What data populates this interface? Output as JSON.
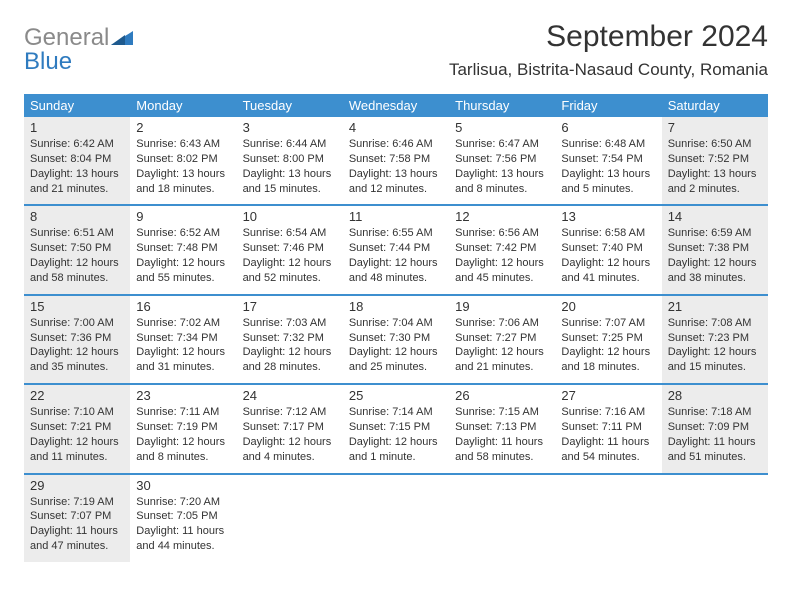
{
  "brand": {
    "word1": "General",
    "word2": "Blue",
    "gray_color": "#8a8a8a",
    "blue_color": "#2f7bbf",
    "icon_color": "#2f7bbf"
  },
  "title": "September 2024",
  "location": "Tarlisua, Bistrita-Nasaud County, Romania",
  "colors": {
    "header_bg": "#3d8fcf",
    "header_text": "#ffffff",
    "row_border": "#3d8fcf",
    "shaded_bg": "#ececec",
    "text": "#333333",
    "page_bg": "#ffffff"
  },
  "typography": {
    "month_title_size": 30,
    "location_size": 17,
    "dayhead_size": 13,
    "daynum_size": 13,
    "body_size": 11
  },
  "day_headers": [
    "Sunday",
    "Monday",
    "Tuesday",
    "Wednesday",
    "Thursday",
    "Friday",
    "Saturday"
  ],
  "weeks": [
    [
      {
        "num": "1",
        "shaded": true,
        "sunrise": "Sunrise: 6:42 AM",
        "sunset": "Sunset: 8:04 PM",
        "day1": "Daylight: 13 hours",
        "day2": "and 21 minutes."
      },
      {
        "num": "2",
        "shaded": false,
        "sunrise": "Sunrise: 6:43 AM",
        "sunset": "Sunset: 8:02 PM",
        "day1": "Daylight: 13 hours",
        "day2": "and 18 minutes."
      },
      {
        "num": "3",
        "shaded": false,
        "sunrise": "Sunrise: 6:44 AM",
        "sunset": "Sunset: 8:00 PM",
        "day1": "Daylight: 13 hours",
        "day2": "and 15 minutes."
      },
      {
        "num": "4",
        "shaded": false,
        "sunrise": "Sunrise: 6:46 AM",
        "sunset": "Sunset: 7:58 PM",
        "day1": "Daylight: 13 hours",
        "day2": "and 12 minutes."
      },
      {
        "num": "5",
        "shaded": false,
        "sunrise": "Sunrise: 6:47 AM",
        "sunset": "Sunset: 7:56 PM",
        "day1": "Daylight: 13 hours",
        "day2": "and 8 minutes."
      },
      {
        "num": "6",
        "shaded": false,
        "sunrise": "Sunrise: 6:48 AM",
        "sunset": "Sunset: 7:54 PM",
        "day1": "Daylight: 13 hours",
        "day2": "and 5 minutes."
      },
      {
        "num": "7",
        "shaded": true,
        "sunrise": "Sunrise: 6:50 AM",
        "sunset": "Sunset: 7:52 PM",
        "day1": "Daylight: 13 hours",
        "day2": "and 2 minutes."
      }
    ],
    [
      {
        "num": "8",
        "shaded": true,
        "sunrise": "Sunrise: 6:51 AM",
        "sunset": "Sunset: 7:50 PM",
        "day1": "Daylight: 12 hours",
        "day2": "and 58 minutes."
      },
      {
        "num": "9",
        "shaded": false,
        "sunrise": "Sunrise: 6:52 AM",
        "sunset": "Sunset: 7:48 PM",
        "day1": "Daylight: 12 hours",
        "day2": "and 55 minutes."
      },
      {
        "num": "10",
        "shaded": false,
        "sunrise": "Sunrise: 6:54 AM",
        "sunset": "Sunset: 7:46 PM",
        "day1": "Daylight: 12 hours",
        "day2": "and 52 minutes."
      },
      {
        "num": "11",
        "shaded": false,
        "sunrise": "Sunrise: 6:55 AM",
        "sunset": "Sunset: 7:44 PM",
        "day1": "Daylight: 12 hours",
        "day2": "and 48 minutes."
      },
      {
        "num": "12",
        "shaded": false,
        "sunrise": "Sunrise: 6:56 AM",
        "sunset": "Sunset: 7:42 PM",
        "day1": "Daylight: 12 hours",
        "day2": "and 45 minutes."
      },
      {
        "num": "13",
        "shaded": false,
        "sunrise": "Sunrise: 6:58 AM",
        "sunset": "Sunset: 7:40 PM",
        "day1": "Daylight: 12 hours",
        "day2": "and 41 minutes."
      },
      {
        "num": "14",
        "shaded": true,
        "sunrise": "Sunrise: 6:59 AM",
        "sunset": "Sunset: 7:38 PM",
        "day1": "Daylight: 12 hours",
        "day2": "and 38 minutes."
      }
    ],
    [
      {
        "num": "15",
        "shaded": true,
        "sunrise": "Sunrise: 7:00 AM",
        "sunset": "Sunset: 7:36 PM",
        "day1": "Daylight: 12 hours",
        "day2": "and 35 minutes."
      },
      {
        "num": "16",
        "shaded": false,
        "sunrise": "Sunrise: 7:02 AM",
        "sunset": "Sunset: 7:34 PM",
        "day1": "Daylight: 12 hours",
        "day2": "and 31 minutes."
      },
      {
        "num": "17",
        "shaded": false,
        "sunrise": "Sunrise: 7:03 AM",
        "sunset": "Sunset: 7:32 PM",
        "day1": "Daylight: 12 hours",
        "day2": "and 28 minutes."
      },
      {
        "num": "18",
        "shaded": false,
        "sunrise": "Sunrise: 7:04 AM",
        "sunset": "Sunset: 7:30 PM",
        "day1": "Daylight: 12 hours",
        "day2": "and 25 minutes."
      },
      {
        "num": "19",
        "shaded": false,
        "sunrise": "Sunrise: 7:06 AM",
        "sunset": "Sunset: 7:27 PM",
        "day1": "Daylight: 12 hours",
        "day2": "and 21 minutes."
      },
      {
        "num": "20",
        "shaded": false,
        "sunrise": "Sunrise: 7:07 AM",
        "sunset": "Sunset: 7:25 PM",
        "day1": "Daylight: 12 hours",
        "day2": "and 18 minutes."
      },
      {
        "num": "21",
        "shaded": true,
        "sunrise": "Sunrise: 7:08 AM",
        "sunset": "Sunset: 7:23 PM",
        "day1": "Daylight: 12 hours",
        "day2": "and 15 minutes."
      }
    ],
    [
      {
        "num": "22",
        "shaded": true,
        "sunrise": "Sunrise: 7:10 AM",
        "sunset": "Sunset: 7:21 PM",
        "day1": "Daylight: 12 hours",
        "day2": "and 11 minutes."
      },
      {
        "num": "23",
        "shaded": false,
        "sunrise": "Sunrise: 7:11 AM",
        "sunset": "Sunset: 7:19 PM",
        "day1": "Daylight: 12 hours",
        "day2": "and 8 minutes."
      },
      {
        "num": "24",
        "shaded": false,
        "sunrise": "Sunrise: 7:12 AM",
        "sunset": "Sunset: 7:17 PM",
        "day1": "Daylight: 12 hours",
        "day2": "and 4 minutes."
      },
      {
        "num": "25",
        "shaded": false,
        "sunrise": "Sunrise: 7:14 AM",
        "sunset": "Sunset: 7:15 PM",
        "day1": "Daylight: 12 hours",
        "day2": "and 1 minute."
      },
      {
        "num": "26",
        "shaded": false,
        "sunrise": "Sunrise: 7:15 AM",
        "sunset": "Sunset: 7:13 PM",
        "day1": "Daylight: 11 hours",
        "day2": "and 58 minutes."
      },
      {
        "num": "27",
        "shaded": false,
        "sunrise": "Sunrise: 7:16 AM",
        "sunset": "Sunset: 7:11 PM",
        "day1": "Daylight: 11 hours",
        "day2": "and 54 minutes."
      },
      {
        "num": "28",
        "shaded": true,
        "sunrise": "Sunrise: 7:18 AM",
        "sunset": "Sunset: 7:09 PM",
        "day1": "Daylight: 11 hours",
        "day2": "and 51 minutes."
      }
    ],
    [
      {
        "num": "29",
        "shaded": true,
        "sunrise": "Sunrise: 7:19 AM",
        "sunset": "Sunset: 7:07 PM",
        "day1": "Daylight: 11 hours",
        "day2": "and 47 minutes."
      },
      {
        "num": "30",
        "shaded": false,
        "sunrise": "Sunrise: 7:20 AM",
        "sunset": "Sunset: 7:05 PM",
        "day1": "Daylight: 11 hours",
        "day2": "and 44 minutes."
      },
      {
        "empty": true
      },
      {
        "empty": true
      },
      {
        "empty": true
      },
      {
        "empty": true
      },
      {
        "empty": true
      }
    ]
  ]
}
